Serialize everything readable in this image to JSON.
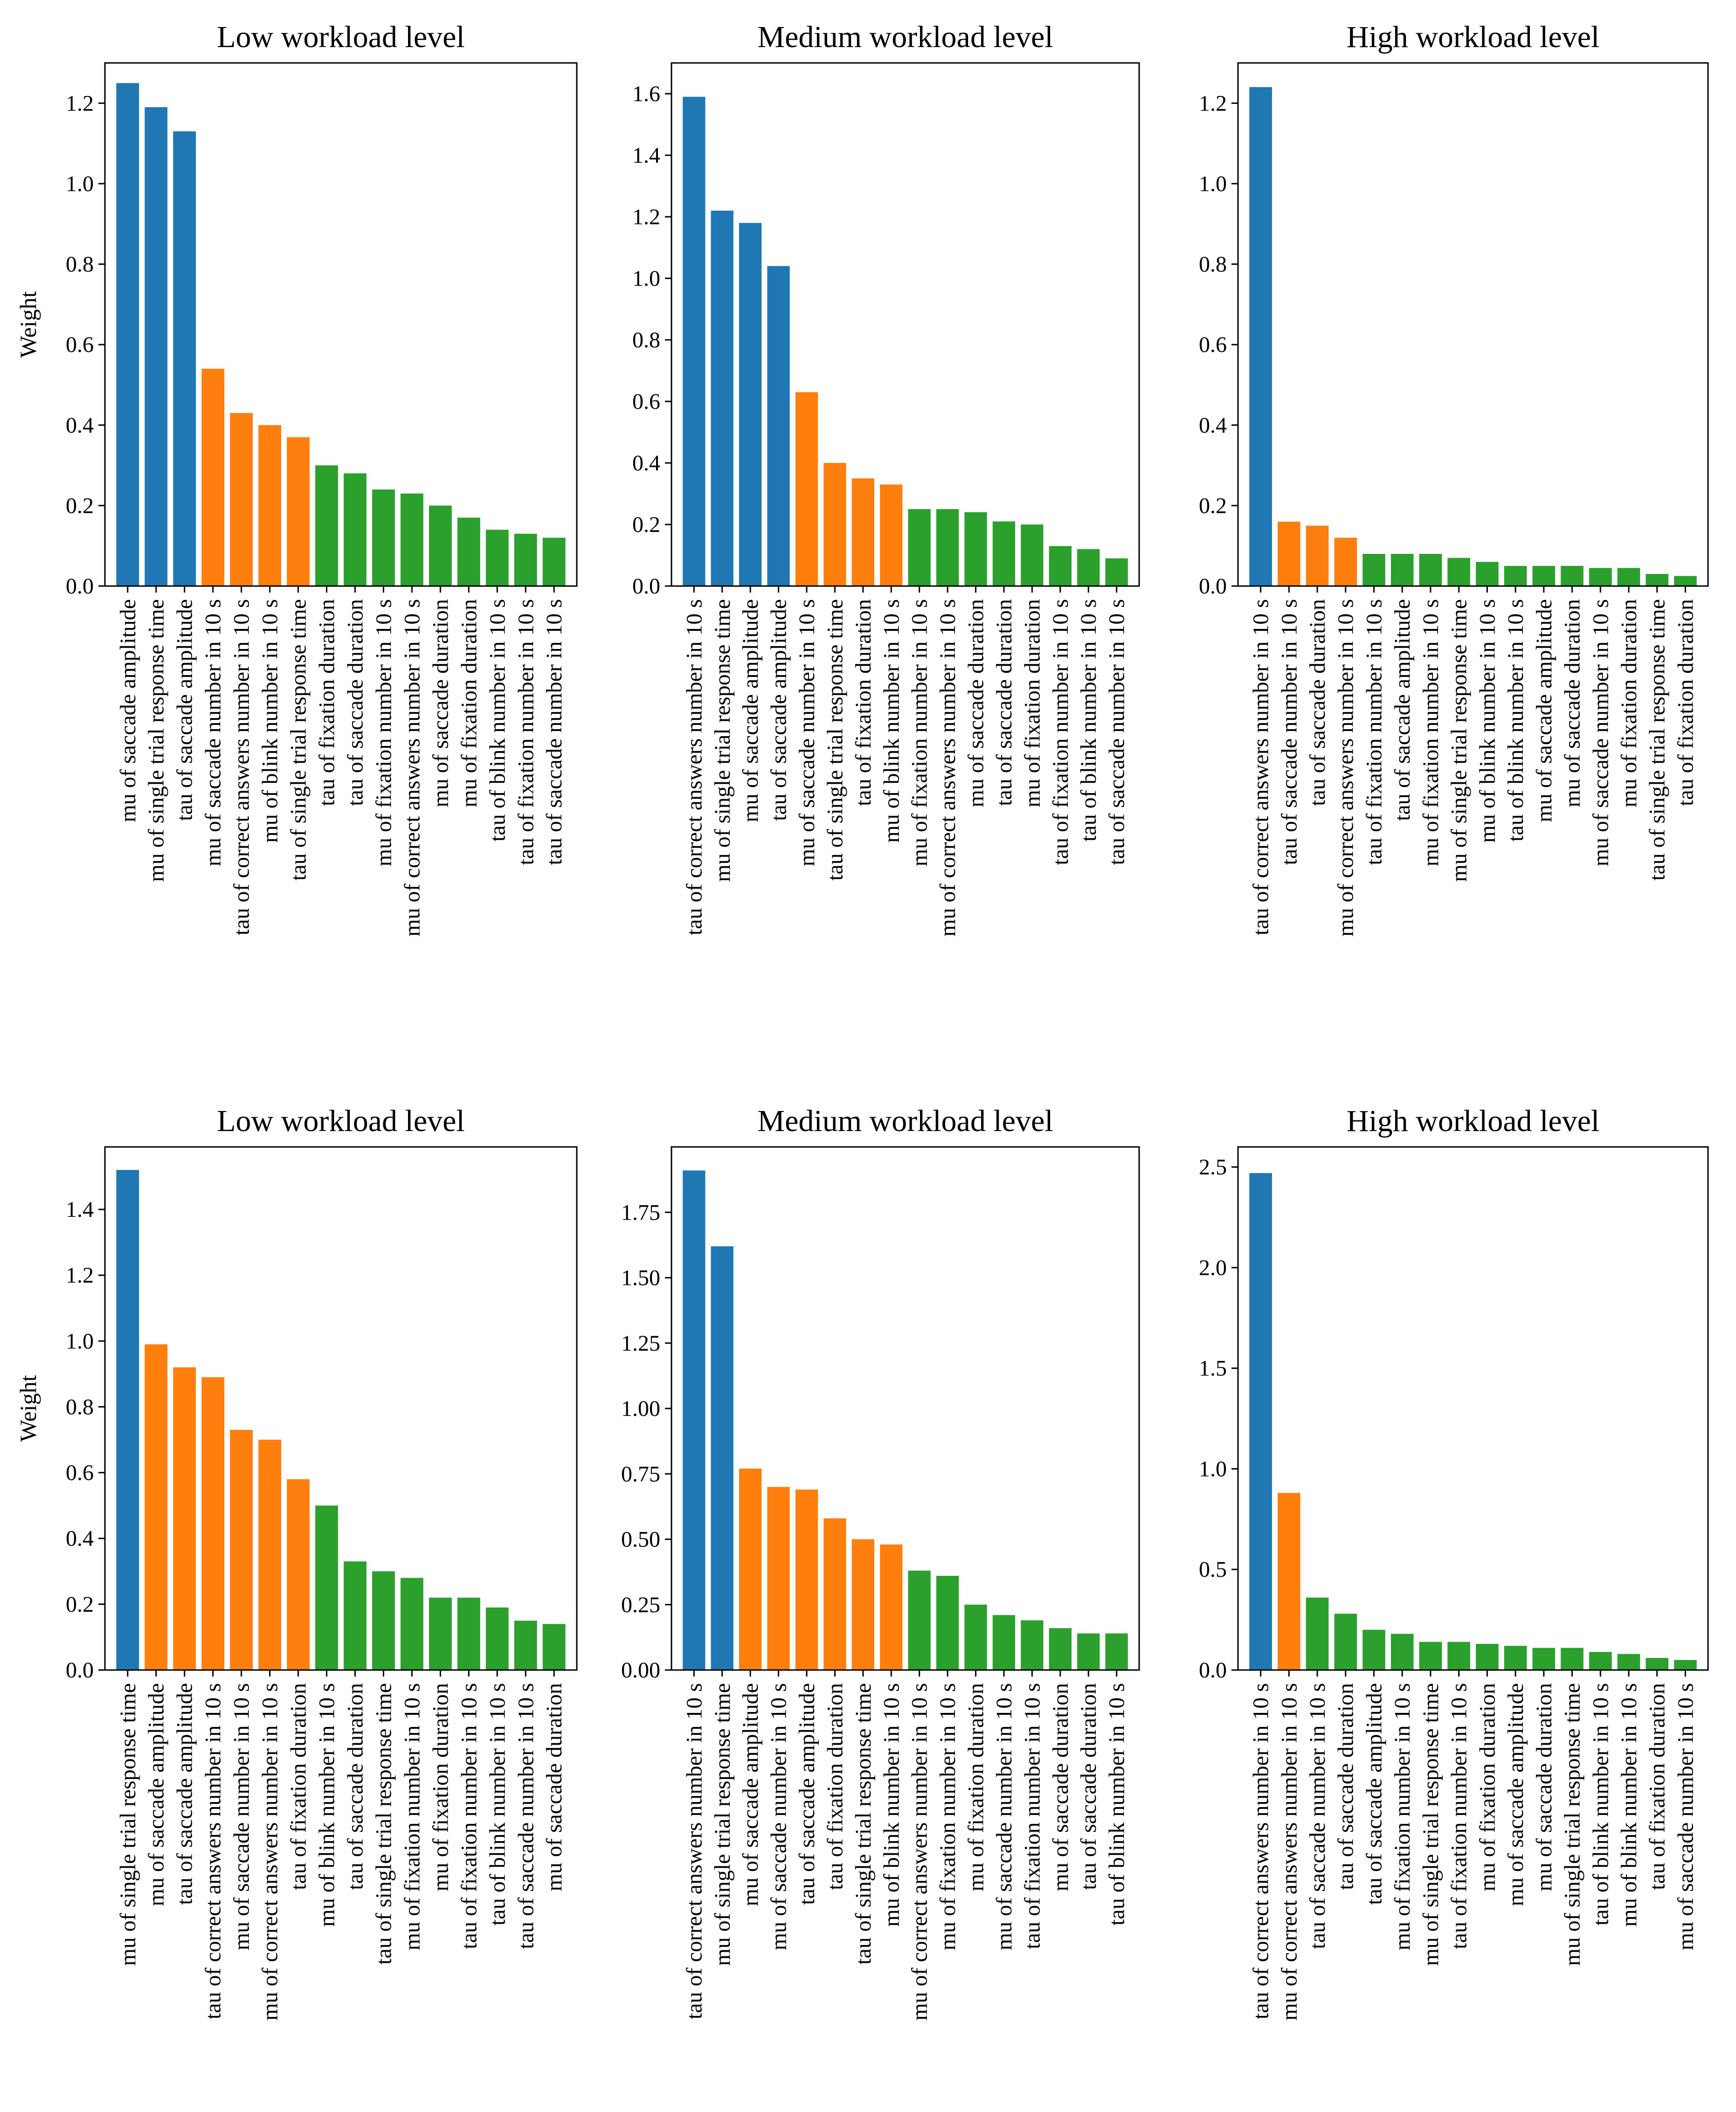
{
  "colors": {
    "group1": "#1f77b4",
    "group2": "#ff7f0e",
    "group3": "#2ca02c"
  },
  "chart_data": [
    {
      "type": "bar",
      "title": "Low workload level",
      "ylabel": "Weight",
      "ylim": [
        0,
        1.3
      ],
      "yticks": [
        "0.0",
        "0.2",
        "0.4",
        "0.6",
        "0.8",
        "1.0",
        "1.2"
      ],
      "categories": [
        "mu of saccade amplitude",
        "mu of single trial response time",
        "tau of saccade amplitude",
        "mu of saccade number in 10 s",
        "tau of correct answers number in 10 s",
        "mu of blink number in 10 s",
        "tau of single trial response time",
        "tau of fixation duration",
        "tau of saccade duration",
        "mu of fixation number in 10 s",
        "mu of correct answers number in 10 s",
        "mu of saccade duration",
        "mu of fixation duration",
        "tau of blink number in 10 s",
        "tau of fixation number in 10 s",
        "tau of saccade number in 10 s"
      ],
      "values": [
        1.25,
        1.19,
        1.13,
        0.54,
        0.43,
        0.4,
        0.37,
        0.3,
        0.28,
        0.24,
        0.23,
        0.2,
        0.17,
        0.14,
        0.13,
        0.12
      ],
      "groups": [
        1,
        1,
        1,
        2,
        2,
        2,
        2,
        3,
        3,
        3,
        3,
        3,
        3,
        3,
        3,
        3
      ]
    },
    {
      "type": "bar",
      "title": "Medium workload level",
      "ylabel": "",
      "ylim": [
        0,
        1.7
      ],
      "yticks": [
        "0.0",
        "0.2",
        "0.4",
        "0.6",
        "0.8",
        "1.0",
        "1.2",
        "1.4",
        "1.6"
      ],
      "categories": [
        "tau of correct answers number in 10 s",
        "mu of single trial response time",
        "mu of saccade amplitude",
        "tau of saccade amplitude",
        "mu of saccade number in 10 s",
        "tau of single trial response time",
        "tau of fixation duration",
        "mu of blink number in 10 s",
        "mu of fixation number in 10 s",
        "mu of correct answers number in 10 s",
        "mu of saccade duration",
        "tau of saccade duration",
        "mu of fixation duration",
        "tau of fixation number in 10 s",
        "tau of blink number in 10 s",
        "tau of saccade number in 10 s"
      ],
      "values": [
        1.59,
        1.22,
        1.18,
        1.04,
        0.63,
        0.4,
        0.35,
        0.33,
        0.25,
        0.25,
        0.24,
        0.21,
        0.2,
        0.13,
        0.12,
        0.09
      ],
      "groups": [
        1,
        1,
        1,
        1,
        2,
        2,
        2,
        2,
        3,
        3,
        3,
        3,
        3,
        3,
        3,
        3
      ]
    },
    {
      "type": "bar",
      "title": "High workload level",
      "ylabel": "",
      "ylim": [
        0,
        1.3
      ],
      "yticks": [
        "0.0",
        "0.2",
        "0.4",
        "0.6",
        "0.8",
        "1.0",
        "1.2"
      ],
      "categories": [
        "tau of correct answers number in 10 s",
        "tau of saccade number in 10 s",
        "tau of saccade duration",
        "mu of correct answers number in 10 s",
        "tau of fixation number in 10 s",
        "tau of saccade amplitude",
        "mu of fixation number in 10 s",
        "mu of single trial response time",
        "mu of blink number in 10 s",
        "tau of blink number in 10 s",
        "mu of saccade amplitude",
        "mu of saccade duration",
        "mu of saccade number in 10 s",
        "mu of fixation duration",
        "tau of single trial response time",
        "tau of fixation duration"
      ],
      "values": [
        1.24,
        0.16,
        0.15,
        0.12,
        0.08,
        0.08,
        0.08,
        0.07,
        0.06,
        0.05,
        0.05,
        0.05,
        0.045,
        0.045,
        0.03,
        0.025
      ],
      "groups": [
        1,
        2,
        2,
        2,
        3,
        3,
        3,
        3,
        3,
        3,
        3,
        3,
        3,
        3,
        3,
        3
      ]
    },
    {
      "type": "bar",
      "title": "Low workload level",
      "ylabel": "Weight",
      "ylim": [
        0,
        1.59
      ],
      "yticks": [
        "0.0",
        "0.2",
        "0.4",
        "0.6",
        "0.8",
        "1.0",
        "1.2",
        "1.4"
      ],
      "categories": [
        "mu of single trial response time",
        "mu of saccade amplitude",
        "tau of saccade amplitude",
        "tau of correct answers number in 10 s",
        "mu of saccade number in 10 s",
        "mu of correct answers number in 10 s",
        "tau of fixation duration",
        "mu of blink number in 10 s",
        "tau of saccade duration",
        "tau of single trial response time",
        "mu of fixation number in 10 s",
        "mu of fixation duration",
        "tau of fixation number in 10 s",
        "tau of blink number in 10 s",
        "tau of saccade number in 10 s",
        "mu of saccade duration"
      ],
      "values": [
        1.52,
        0.99,
        0.92,
        0.89,
        0.73,
        0.7,
        0.58,
        0.5,
        0.33,
        0.3,
        0.28,
        0.22,
        0.22,
        0.19,
        0.15,
        0.14
      ],
      "groups": [
        1,
        2,
        2,
        2,
        2,
        2,
        2,
        3,
        3,
        3,
        3,
        3,
        3,
        3,
        3,
        3
      ]
    },
    {
      "type": "bar",
      "title": "Medium workload level",
      "ylabel": "",
      "ylim": [
        0,
        2.0
      ],
      "yticks": [
        "0.00",
        "0.25",
        "0.50",
        "0.75",
        "1.00",
        "1.25",
        "1.50",
        "1.75"
      ],
      "categories": [
        "tau of correct answers number in 10 s",
        "mu of single trial response time",
        "mu of saccade amplitude",
        "mu of saccade number in 10 s",
        "tau of saccade amplitude",
        "tau of fixation duration",
        "tau of single trial response time",
        "mu of blink number in 10 s",
        "mu of correct answers number in 10 s",
        "mu of fixation number in 10 s",
        "mu of fixation duration",
        "mu of saccade number in 10 s",
        "tau of fixation number in 10 s",
        "mu of saccade duration",
        "tau of saccade duration",
        "tau of blink number in 10 s"
      ],
      "values": [
        1.91,
        1.62,
        0.77,
        0.7,
        0.69,
        0.58,
        0.5,
        0.48,
        0.38,
        0.36,
        0.25,
        0.21,
        0.19,
        0.16,
        0.14,
        0.14
      ],
      "groups": [
        1,
        1,
        2,
        2,
        2,
        2,
        2,
        2,
        3,
        3,
        3,
        3,
        3,
        3,
        3,
        3
      ]
    },
    {
      "type": "bar",
      "title": "High workload level",
      "ylabel": "",
      "ylim": [
        0,
        2.6
      ],
      "yticks": [
        "0.0",
        "0.5",
        "1.0",
        "1.5",
        "2.0",
        "2.5"
      ],
      "categories": [
        "tau of correct answers number in 10 s",
        "mu of correct answers number in 10 s",
        "tau of saccade number in 10 s",
        "tau of saccade duration",
        "tau of saccade amplitude",
        "mu of fixation number in 10 s",
        "mu of single trial response time",
        "tau of fixation number in 10 s",
        "mu of fixation duration",
        "mu of saccade amplitude",
        "mu of saccade duration",
        "mu of single trial response time",
        "tau of blink number in 10 s",
        "mu of blink number in 10 s",
        "tau of fixation duration",
        "mu of saccade number in 10 s"
      ],
      "values": [
        2.47,
        0.88,
        0.36,
        0.28,
        0.2,
        0.18,
        0.14,
        0.14,
        0.13,
        0.12,
        0.11,
        0.11,
        0.09,
        0.08,
        0.06,
        0.05
      ],
      "groups": [
        1,
        2,
        3,
        3,
        3,
        3,
        3,
        3,
        3,
        3,
        3,
        3,
        3,
        3,
        3,
        3
      ]
    }
  ]
}
